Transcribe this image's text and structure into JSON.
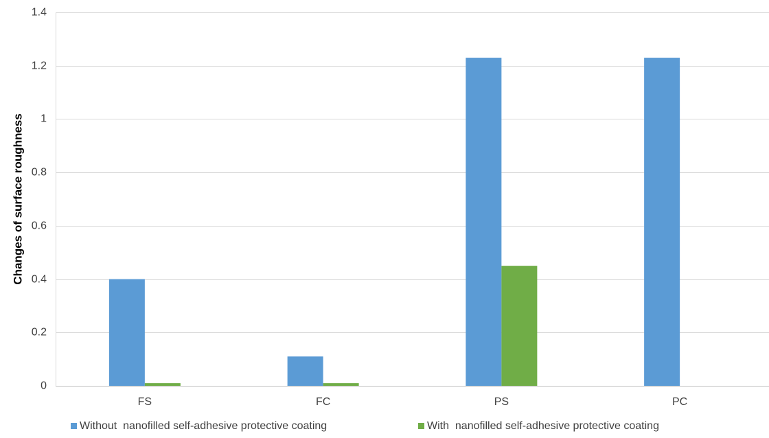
{
  "chart_data": {
    "type": "bar",
    "title": "",
    "xlabel": "",
    "ylabel": "Changes of surface roughness",
    "ylim": [
      0,
      1.4
    ],
    "yticks": [
      "0",
      "0.2",
      "0.4",
      "0.6",
      "0.8",
      "1",
      "1.2",
      "1.4"
    ],
    "ytick_values": [
      0,
      0.2,
      0.4,
      0.6,
      0.8,
      1.0,
      1.2,
      1.4
    ],
    "categories": [
      "FS",
      "FC",
      "PS",
      "PC"
    ],
    "series": [
      {
        "name": "Without  nanofilled self-adhesive protective coating",
        "color": "#5b9bd5",
        "values": [
          0.4,
          0.11,
          1.23,
          1.23
        ]
      },
      {
        "name": "With  nanofilled self-adhesive protective coating",
        "color": "#70ad47",
        "values": [
          0.01,
          0.01,
          0.45,
          0
        ]
      }
    ],
    "grid": true,
    "legend": "bottom"
  }
}
